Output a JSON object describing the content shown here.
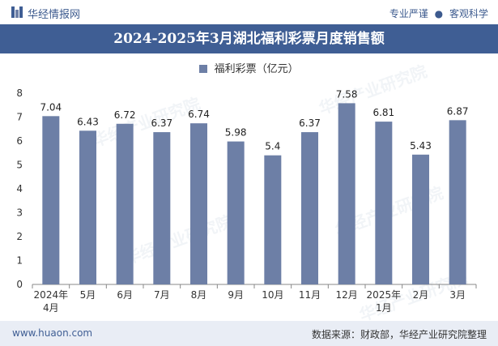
{
  "header": {
    "brand": "华经情报网",
    "tag_left": "专业严谨",
    "tag_right": "客观科学",
    "separator": "●"
  },
  "footer": {
    "site": "www.huaon.com",
    "source": "数据来源：财政部，华经产业研究院整理"
  },
  "watermark": "华经产业研究院",
  "colors": {
    "bar": "#6d7fa6",
    "title_bg": "#3f5e94",
    "footer_bg": "#e9edf5"
  },
  "chart_data": {
    "type": "bar",
    "title": "2024-2025年3月湖北福利彩票月度销售额",
    "categories": [
      "2024年\n4月",
      "5月",
      "6月",
      "7月",
      "8月",
      "9月",
      "10月",
      "11月",
      "12月",
      "2025年\n1月",
      "2月",
      "3月"
    ],
    "series": [
      {
        "name": "福利彩票（亿元）",
        "values": [
          7.04,
          6.43,
          6.72,
          6.37,
          6.74,
          5.98,
          5.4,
          6.37,
          7.58,
          6.81,
          5.43,
          6.87
        ]
      }
    ],
    "data_labels": [
      "7.04",
      "6.43",
      "6.72",
      "6.37",
      "6.74",
      "5.98",
      "5.4",
      "6.37",
      "7.58",
      "6.81",
      "5.43",
      "6.87"
    ],
    "ylim": [
      0,
      8
    ],
    "yticks": [
      0,
      1,
      2,
      3,
      4,
      5,
      6,
      7,
      8
    ],
    "xlabel": "",
    "ylabel": "",
    "grid": false,
    "legend": "top-center"
  }
}
